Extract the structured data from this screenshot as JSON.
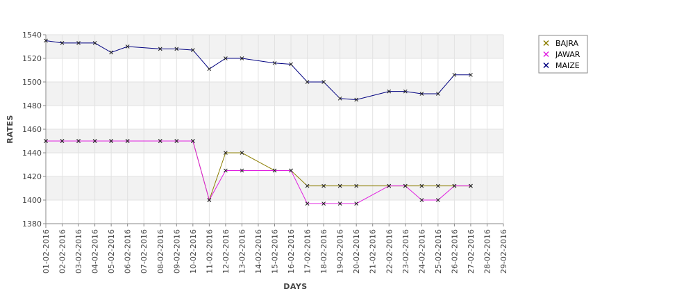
{
  "chart_data": {
    "type": "line",
    "title": "",
    "xlabel": "DAYS",
    "ylabel": "RATES",
    "ylim": [
      1380,
      1540
    ],
    "yticks": [
      1380,
      1400,
      1420,
      1440,
      1460,
      1480,
      1500,
      1520,
      1540
    ],
    "grid": true,
    "legend_position": "top-right",
    "categories": [
      "01-02-2016",
      "02-02-2016",
      "03-02-2016",
      "04-02-2016",
      "05-02-2016",
      "06-02-2016",
      "07-02-2016",
      "08-02-2016",
      "09-02-2016",
      "10-02-2016",
      "11-02-2016",
      "12-02-2016",
      "13-02-2016",
      "14-02-2016",
      "15-02-2016",
      "16-02-2016",
      "17-02-2016",
      "18-02-2016",
      "19-02-2016",
      "20-02-2016",
      "21-02-2016",
      "22-02-2016",
      "23-02-2016",
      "24-02-2016",
      "25-02-2016",
      "26-02-2016",
      "27-02-2016",
      "28-02-2016",
      "29-02-2016"
    ],
    "series": [
      {
        "name": "BAJRA",
        "color": "#8b7d00",
        "values": [
          1450,
          1450,
          1450,
          1450,
          1450,
          1450,
          null,
          1450,
          1450,
          1450,
          1400,
          1440,
          1440,
          null,
          1425,
          1425,
          1412,
          1412,
          1412,
          1412,
          null,
          1412,
          1412,
          1412,
          1412,
          1412,
          1412,
          null,
          null
        ]
      },
      {
        "name": "JAWAR",
        "color": "#e020e0",
        "values": [
          1450,
          1450,
          1450,
          1450,
          1450,
          1450,
          null,
          1450,
          1450,
          1450,
          1400,
          1425,
          1425,
          null,
          1425,
          1425,
          1397,
          1397,
          1397,
          1397,
          null,
          1412,
          1412,
          1400,
          1400,
          1412,
          1412,
          null,
          null
        ]
      },
      {
        "name": "MAIZE",
        "color": "#000080",
        "values": [
          1535,
          1533,
          1533,
          1533,
          1525,
          1530,
          null,
          1528,
          1528,
          1527,
          1511,
          1520,
          1520,
          null,
          1516,
          1515,
          1500,
          1500,
          1486,
          1485,
          null,
          1492,
          1492,
          1490,
          1490,
          1506,
          1506,
          null,
          null
        ]
      }
    ]
  }
}
